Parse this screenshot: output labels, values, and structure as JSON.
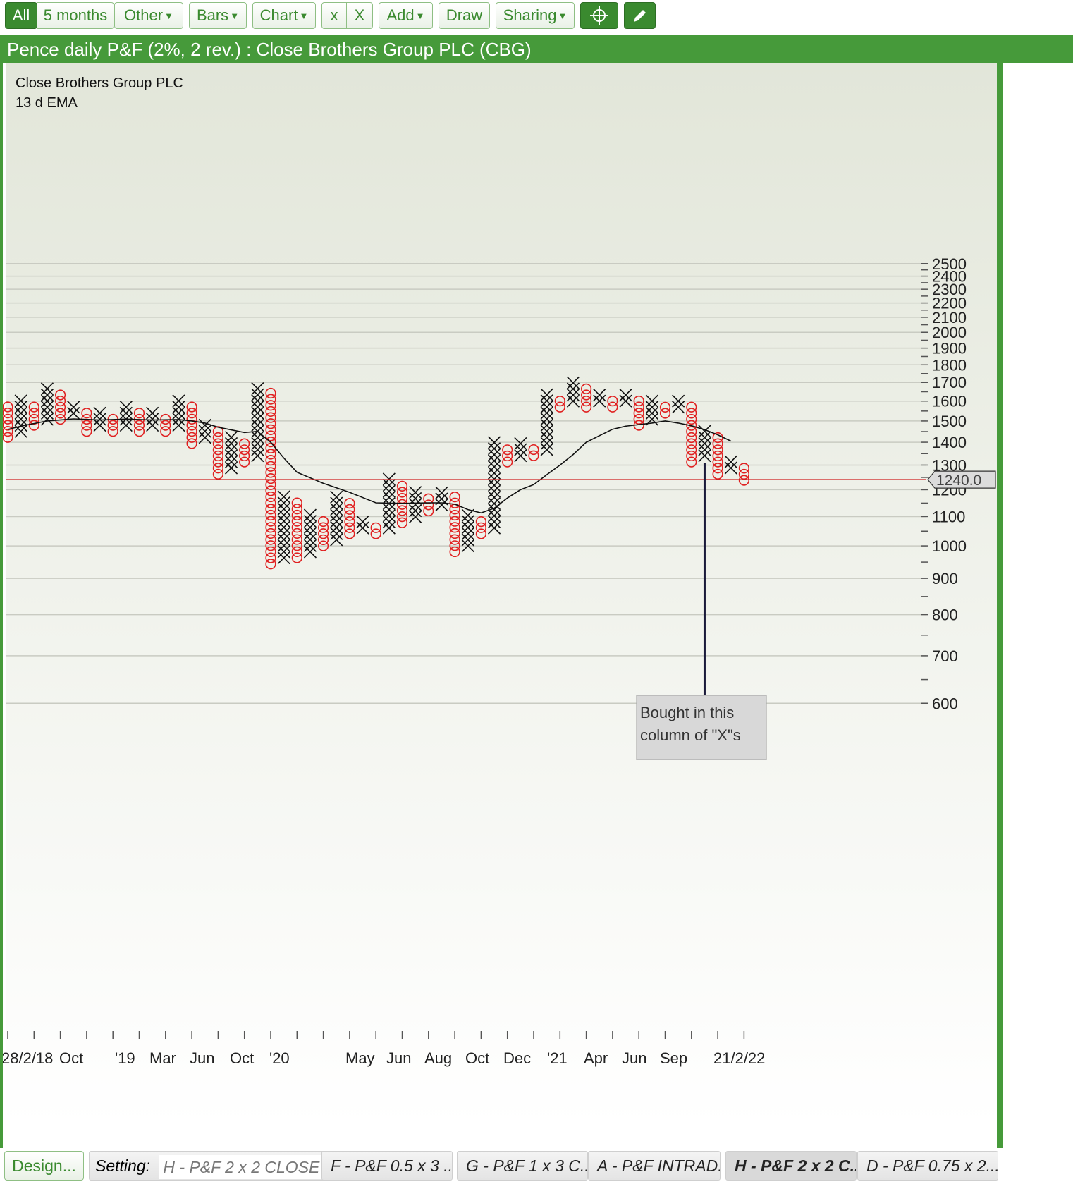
{
  "toolbar": {
    "all": "All",
    "months": "5 months",
    "other": "Other",
    "bars": "Bars",
    "chart": "Chart",
    "x_small": "x",
    "x_big": "X",
    "add": "Add",
    "draw": "Draw",
    "sharing": "Sharing",
    "crosshair_icon": "crosshair-icon",
    "pencil_icon": "pencil-icon"
  },
  "title": "Pence daily P&F (2%, 2 rev.) : Close Brothers Group PLC (CBG)",
  "bottom": {
    "design": "Design...",
    "setting_label": "Setting:",
    "setting_value": "H - P&F 2 x 2 CLOSE",
    "tabs": [
      "F - P&F 0.5 x 3 ...",
      "G - P&F 1 x 3 C...",
      "A - P&F INTRAD...",
      "H - P&F 2 x 2 C...",
      "D - P&F 0.75 x 2..."
    ],
    "selected_tab": 3
  },
  "colors": {
    "accent": "#469a3a",
    "x_mark": "#111111",
    "o_mark": "#e02020",
    "price_line": "#d02020",
    "ema_line": "#111111"
  },
  "chart_data": {
    "type": "point-and-figure",
    "legend": [
      "Close Brothers Group PLC",
      "13 d EMA"
    ],
    "y_scale": "log",
    "ylim": [
      560,
      2560
    ],
    "y_ticks": [
      2500,
      2400,
      2300,
      2200,
      2100,
      2000,
      1900,
      1800,
      1700,
      1600,
      1500,
      1400,
      1300,
      1200,
      1100,
      1000,
      900,
      800,
      700,
      600
    ],
    "x_labels": [
      "28/2/18",
      "Oct",
      "'19",
      "Mar",
      "Jun",
      "Oct",
      "'20",
      "May",
      "Jun",
      "Aug",
      "Oct",
      "Dec",
      "'21",
      "Apr",
      "Jun",
      "Sep",
      "21/2/22"
    ],
    "current_price": 1240.0,
    "current_price_label": "1240.0",
    "annotation": {
      "text_lines": [
        "Bought in this",
        "column of \"X\"s"
      ],
      "column": 53
    },
    "columns": [
      {
        "type": "O",
        "high": 1569,
        "low": 1422
      },
      {
        "type": "X",
        "high": 1600,
        "low": 1450
      },
      {
        "type": "O",
        "high": 1569,
        "low": 1479
      },
      {
        "type": "X",
        "high": 1665,
        "low": 1508
      },
      {
        "type": "O",
        "high": 1632,
        "low": 1508
      },
      {
        "type": "X",
        "high": 1569,
        "low": 1538
      },
      {
        "type": "O",
        "high": 1538,
        "low": 1450
      },
      {
        "type": "X",
        "high": 1538,
        "low": 1479
      },
      {
        "type": "O",
        "high": 1508,
        "low": 1450
      },
      {
        "type": "X",
        "high": 1569,
        "low": 1479
      },
      {
        "type": "O",
        "high": 1538,
        "low": 1450
      },
      {
        "type": "X",
        "high": 1538,
        "low": 1479
      },
      {
        "type": "O",
        "high": 1508,
        "low": 1450
      },
      {
        "type": "X",
        "high": 1600,
        "low": 1479
      },
      {
        "type": "O",
        "high": 1569,
        "low": 1394
      },
      {
        "type": "X",
        "high": 1479,
        "low": 1422
      },
      {
        "type": "O",
        "high": 1450,
        "low": 1262
      },
      {
        "type": "X",
        "high": 1422,
        "low": 1288
      },
      {
        "type": "O",
        "high": 1394,
        "low": 1313
      },
      {
        "type": "X",
        "high": 1665,
        "low": 1340
      },
      {
        "type": "O",
        "high": 1632,
        "low": 943
      },
      {
        "type": "X",
        "high": 1165,
        "low": 962
      },
      {
        "type": "O",
        "high": 1142,
        "low": 962
      },
      {
        "type": "X",
        "high": 1099,
        "low": 981
      },
      {
        "type": "O",
        "high": 1078,
        "low": 1000
      },
      {
        "type": "X",
        "high": 1165,
        "low": 1020
      },
      {
        "type": "O",
        "high": 1142,
        "low": 1040
      },
      {
        "type": "X",
        "high": 1078,
        "low": 1060
      },
      {
        "type": "O",
        "high": 1060,
        "low": 1040
      },
      {
        "type": "X",
        "high": 1237,
        "low": 1060
      },
      {
        "type": "O",
        "high": 1212,
        "low": 1078
      },
      {
        "type": "X",
        "high": 1188,
        "low": 1099
      },
      {
        "type": "O",
        "high": 1165,
        "low": 1120
      },
      {
        "type": "X",
        "high": 1188,
        "low": 1142
      },
      {
        "type": "O",
        "high": 1165,
        "low": 981
      },
      {
        "type": "X",
        "high": 1099,
        "low": 1000
      },
      {
        "type": "O",
        "high": 1078,
        "low": 1040
      },
      {
        "type": "X",
        "high": 1394,
        "low": 1060
      },
      {
        "type": "O",
        "high": 1367,
        "low": 1313
      },
      {
        "type": "X",
        "high": 1394,
        "low": 1340
      },
      {
        "type": "O",
        "high": 1367,
        "low": 1340
      },
      {
        "type": "X",
        "high": 1632,
        "low": 1367
      },
      {
        "type": "O",
        "high": 1600,
        "low": 1569
      },
      {
        "type": "X",
        "high": 1698,
        "low": 1600
      },
      {
        "type": "O",
        "high": 1665,
        "low": 1569
      },
      {
        "type": "X",
        "high": 1632,
        "low": 1600
      },
      {
        "type": "O",
        "high": 1600,
        "low": 1569
      },
      {
        "type": "X",
        "high": 1632,
        "low": 1600
      },
      {
        "type": "O",
        "high": 1600,
        "low": 1479
      },
      {
        "type": "X",
        "high": 1600,
        "low": 1508
      },
      {
        "type": "O",
        "high": 1569,
        "low": 1538
      },
      {
        "type": "X",
        "high": 1600,
        "low": 1569
      },
      {
        "type": "O",
        "high": 1569,
        "low": 1313
      },
      {
        "type": "X",
        "high": 1450,
        "low": 1340
      },
      {
        "type": "O",
        "high": 1422,
        "low": 1262
      },
      {
        "type": "X",
        "high": 1313,
        "low": 1288
      },
      {
        "type": "O",
        "high": 1288,
        "low": 1237
      }
    ],
    "ema": [
      [
        0,
        1459
      ],
      [
        1,
        1475
      ],
      [
        3,
        1500
      ],
      [
        5,
        1510
      ],
      [
        7,
        1505
      ],
      [
        9,
        1509
      ],
      [
        11,
        1505
      ],
      [
        13,
        1507
      ],
      [
        14,
        1500
      ],
      [
        15,
        1490
      ],
      [
        16,
        1470
      ],
      [
        18,
        1445
      ],
      [
        19,
        1450
      ],
      [
        20,
        1400
      ],
      [
        21,
        1330
      ],
      [
        22,
        1270
      ],
      [
        24,
        1225
      ],
      [
        26,
        1190
      ],
      [
        28,
        1150
      ],
      [
        30,
        1148
      ],
      [
        32,
        1150
      ],
      [
        33,
        1150
      ],
      [
        34,
        1145
      ],
      [
        35,
        1125
      ],
      [
        36,
        1113
      ],
      [
        37,
        1130
      ],
      [
        38,
        1168
      ],
      [
        39,
        1200
      ],
      [
        40,
        1220
      ],
      [
        41,
        1260
      ],
      [
        42,
        1300
      ],
      [
        43,
        1345
      ],
      [
        44,
        1400
      ],
      [
        45,
        1430
      ],
      [
        46,
        1460
      ],
      [
        47,
        1475
      ],
      [
        49,
        1490
      ],
      [
        50,
        1500
      ],
      [
        51,
        1490
      ],
      [
        52,
        1477
      ],
      [
        53,
        1458
      ],
      [
        54,
        1434
      ],
      [
        55,
        1405
      ]
    ]
  }
}
